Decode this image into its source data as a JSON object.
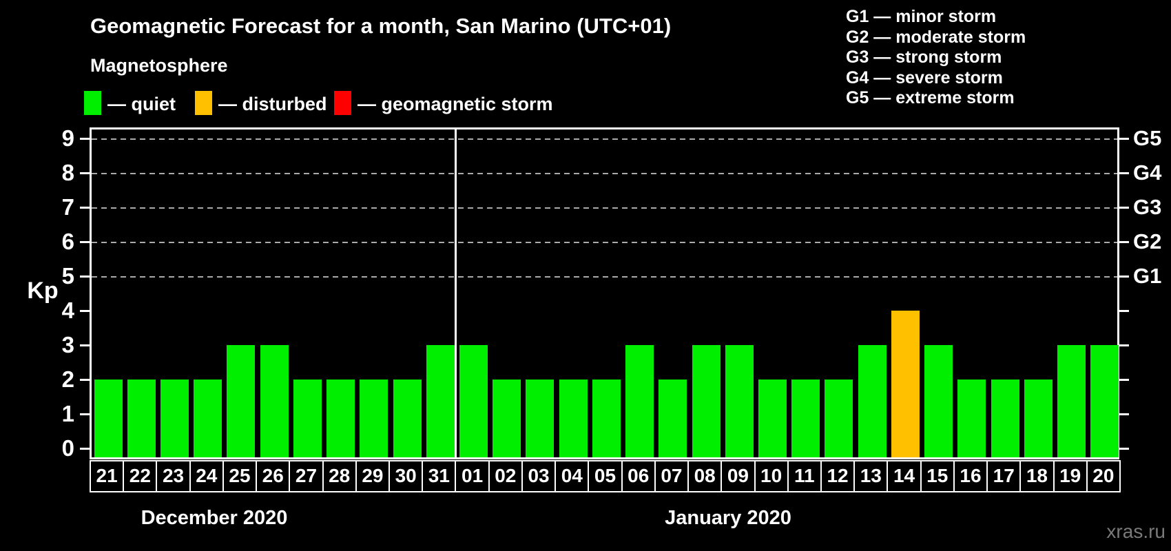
{
  "header": {
    "title": "Geomagnetic Forecast for a month, San Marino (UTC+01)",
    "subtitle": "Magnetosphere"
  },
  "legend": {
    "items": [
      {
        "key": "quiet",
        "label": "— quiet",
        "color": "#00ee00"
      },
      {
        "key": "disturbed",
        "label": "— disturbed",
        "color": "#ffc000"
      },
      {
        "key": "storm",
        "label": "— geomagnetic storm",
        "color": "#ff0000"
      }
    ]
  },
  "storm_scale": {
    "items": [
      "G1 — minor storm",
      "G2 — moderate storm",
      "G3 — strong storm",
      "G4 — severe storm",
      "G5 — extreme storm"
    ]
  },
  "watermark": "xras.ru",
  "colors": {
    "quiet": "#00ee00",
    "disturbed": "#ffc000",
    "storm": "#ff0000",
    "axis": "#ffffff",
    "grid": "#aaaaaa",
    "background": "#000000"
  },
  "chart_data": {
    "type": "bar",
    "title": "Geomagnetic Forecast for a month, San Marino (UTC+01)",
    "ylabel": "Kp",
    "ylim": [
      0,
      9
    ],
    "yticks": [
      0,
      1,
      2,
      3,
      4,
      5,
      6,
      7,
      8,
      9
    ],
    "grid": "dashed horizontal lines at Kp 5 to 9",
    "legend_position": "top",
    "right_axis": [
      {
        "label": "G1",
        "kp": 5
      },
      {
        "label": "G2",
        "kp": 6
      },
      {
        "label": "G3",
        "kp": 7
      },
      {
        "label": "G4",
        "kp": 8
      },
      {
        "label": "G5",
        "kp": 9
      }
    ],
    "categories": [
      "21",
      "22",
      "23",
      "24",
      "25",
      "26",
      "27",
      "28",
      "29",
      "30",
      "31",
      "01",
      "02",
      "03",
      "04",
      "05",
      "06",
      "07",
      "08",
      "09",
      "10",
      "11",
      "12",
      "13",
      "14",
      "15",
      "16",
      "17",
      "18",
      "19",
      "20"
    ],
    "values": [
      2,
      2,
      2,
      2,
      3,
      3,
      2,
      2,
      2,
      2,
      3,
      3,
      2,
      2,
      2,
      2,
      3,
      2,
      3,
      3,
      2,
      2,
      2,
      3,
      4,
      3,
      2,
      2,
      2,
      3,
      3
    ],
    "statuses": [
      "quiet",
      "quiet",
      "quiet",
      "quiet",
      "quiet",
      "quiet",
      "quiet",
      "quiet",
      "quiet",
      "quiet",
      "quiet",
      "quiet",
      "quiet",
      "quiet",
      "quiet",
      "quiet",
      "quiet",
      "quiet",
      "quiet",
      "quiet",
      "quiet",
      "quiet",
      "quiet",
      "quiet",
      "disturbed",
      "quiet",
      "quiet",
      "quiet",
      "quiet",
      "quiet",
      "quiet"
    ],
    "months": [
      {
        "label": "December 2020",
        "day_count": 11
      },
      {
        "label": "January 2020",
        "day_count": 20
      }
    ]
  }
}
